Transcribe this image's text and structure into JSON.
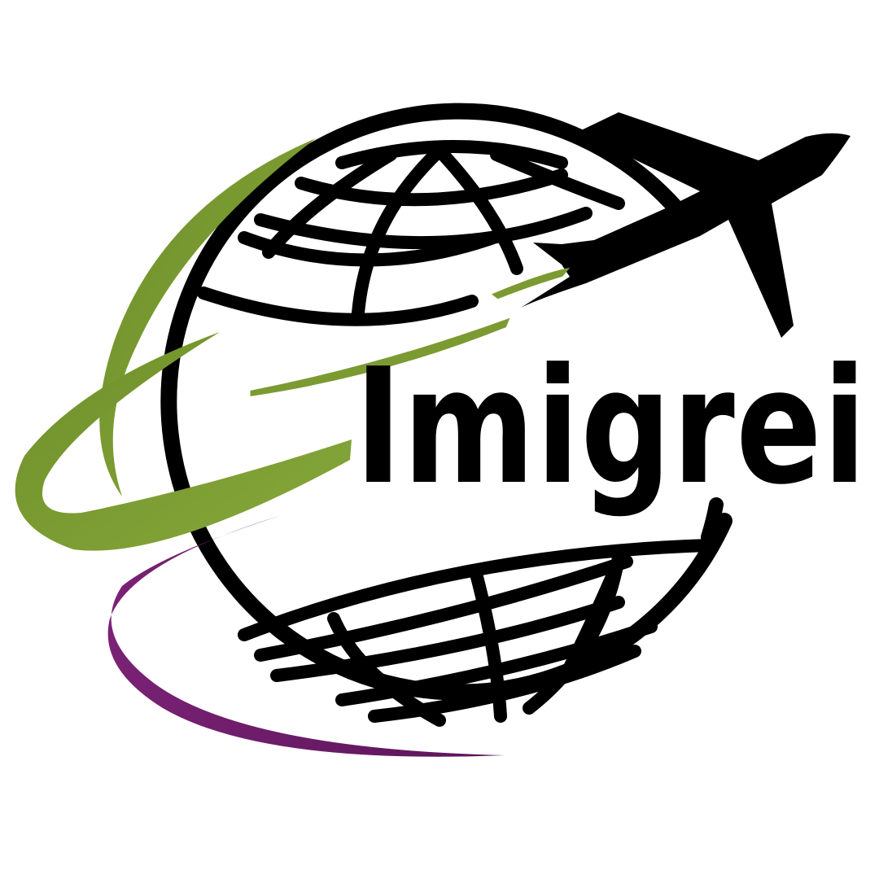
{
  "logo": {
    "wordmark": "Imigrei",
    "icon_names": [
      "globe-icon",
      "airplane-icon",
      "swoosh-green",
      "swoosh-purple"
    ],
    "colors": {
      "ink": "#000000",
      "green": "#7c9a32",
      "green_light": "#a8cf5c",
      "purple": "#6a1a66",
      "background": "#ffffff"
    }
  }
}
